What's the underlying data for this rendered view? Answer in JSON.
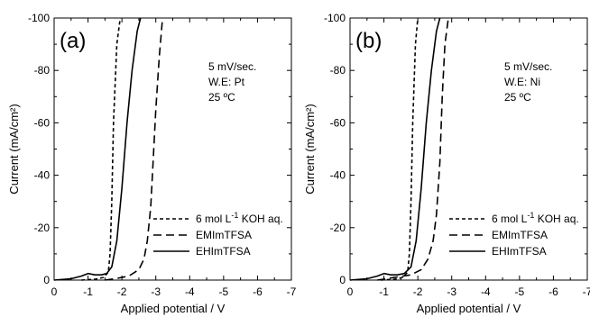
{
  "chart_data": [
    {
      "type": "line",
      "panel_label": "(a)",
      "xlabel": "Applied potential / V",
      "ylabel": "Current (mA/cm²)",
      "xlim": [
        0,
        -7
      ],
      "ylim": [
        0,
        -100
      ],
      "xticks": [
        0,
        -1,
        -2,
        -3,
        -4,
        -5,
        -6,
        -7
      ],
      "yticks": [
        0,
        -20,
        -40,
        -60,
        -80,
        -100
      ],
      "xtick_labels": [
        "0",
        "-1",
        "-2",
        "-3",
        "-4",
        "-5",
        "-6",
        "-7"
      ],
      "ytick_labels": [
        "0",
        "-20",
        "-40",
        "-60",
        "-80",
        "-100"
      ],
      "annotation_lines": [
        "5 mV/sec.",
        "W.E: Pt",
        "25 ºC"
      ],
      "legend_position": "bottom-right",
      "legend": [
        {
          "label": "6 mol L",
          "sup": "-1",
          "label_after": " KOH aq.",
          "dash": "4,3"
        },
        {
          "label": "EMImTFSA",
          "sup": "",
          "label_after": "",
          "dash": "9,5"
        },
        {
          "label": "EHImTFSA",
          "sup": "",
          "label_after": "",
          "dash": ""
        }
      ],
      "series": [
        {
          "name": "6 mol L-1 KOH aq.",
          "dash": "4,3",
          "x": [
            -0.8,
            -1.2,
            -1.45,
            -1.6,
            -1.65,
            -1.7,
            -1.75,
            -1.85,
            -1.95
          ],
          "y": [
            0,
            -0.3,
            -1,
            -3,
            -10,
            -30,
            -60,
            -90,
            -100
          ]
        },
        {
          "name": "EMImTFSA",
          "dash": "9,5",
          "x": [
            -1.5,
            -1.8,
            -2.2,
            -2.5,
            -2.65,
            -2.75,
            -2.85,
            -2.92,
            -3.0,
            -3.1,
            -3.2
          ],
          "y": [
            0,
            -0.5,
            -1.5,
            -4,
            -8,
            -15,
            -28,
            -45,
            -65,
            -85,
            -100
          ]
        },
        {
          "name": "EHImTFSA",
          "dash": "",
          "x": [
            0,
            -0.5,
            -0.8,
            -1.0,
            -1.2,
            -1.4,
            -1.55,
            -1.7,
            -1.85,
            -2.0,
            -2.15,
            -2.3,
            -2.45,
            -2.55
          ],
          "y": [
            0,
            -0.5,
            -1.5,
            -2.5,
            -2,
            -2,
            -2.5,
            -5,
            -15,
            -35,
            -60,
            -80,
            -95,
            -100
          ]
        }
      ]
    },
    {
      "type": "line",
      "panel_label": "(b)",
      "xlabel": "Applied potential / V",
      "ylabel": "Current (mA/cm²)",
      "xlim": [
        0,
        -7
      ],
      "ylim": [
        0,
        -100
      ],
      "xticks": [
        0,
        -1,
        -2,
        -3,
        -4,
        -5,
        -6,
        -7
      ],
      "yticks": [
        0,
        -20,
        -40,
        -60,
        -80,
        -100
      ],
      "xtick_labels": [
        "0",
        "-1",
        "-2",
        "-3",
        "-4",
        "-5",
        "-6",
        "-7"
      ],
      "ytick_labels": [
        "0",
        "-20",
        "-40",
        "-60",
        "-80",
        "-100"
      ],
      "annotation_lines": [
        "5 mV/sec.",
        "W.E: Ni",
        "25 ºC"
      ],
      "legend_position": "bottom-right",
      "legend": [
        {
          "label": "6 mol L",
          "sup": "-1",
          "label_after": " KOH aq.",
          "dash": "4,3"
        },
        {
          "label": "EMImTFSA",
          "sup": "",
          "label_after": "",
          "dash": "9,5"
        },
        {
          "label": "EHImTFSA",
          "sup": "",
          "label_after": "",
          "dash": ""
        }
      ],
      "series": [
        {
          "name": "6 mol L-1 KOH aq.",
          "dash": "4,3",
          "x": [
            -0.9,
            -1.3,
            -1.55,
            -1.7,
            -1.75,
            -1.8,
            -1.85,
            -1.93,
            -2.0
          ],
          "y": [
            0,
            -0.3,
            -1,
            -3,
            -10,
            -30,
            -60,
            -90,
            -100
          ]
        },
        {
          "name": "EMImTFSA",
          "dash": "9,5",
          "x": [
            -0.8,
            -1.3,
            -1.8,
            -2.1,
            -2.3,
            -2.45,
            -2.55,
            -2.65,
            -2.72,
            -2.8,
            -2.9
          ],
          "y": [
            0,
            -1,
            -2,
            -4,
            -8,
            -15,
            -25,
            -45,
            -70,
            -90,
            -100
          ]
        },
        {
          "name": "EHImTFSA",
          "dash": "",
          "x": [
            0,
            -0.5,
            -0.8,
            -1.0,
            -1.2,
            -1.4,
            -1.6,
            -1.8,
            -1.95,
            -2.1,
            -2.25,
            -2.4,
            -2.55,
            -2.65
          ],
          "y": [
            0,
            -0.5,
            -1.5,
            -2.5,
            -2,
            -2,
            -2.5,
            -5,
            -15,
            -35,
            -60,
            -80,
            -95,
            -100
          ]
        }
      ]
    }
  ]
}
